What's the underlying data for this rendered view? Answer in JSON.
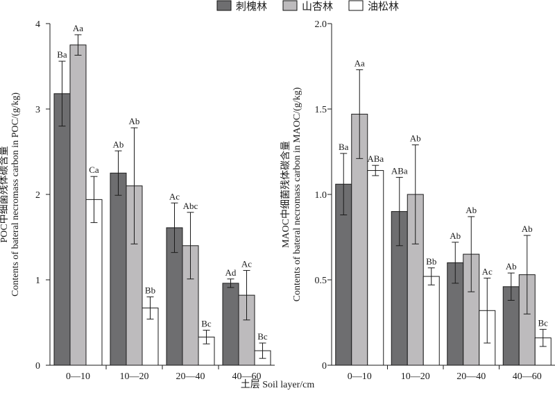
{
  "legend": [
    {
      "name": "刺槐林",
      "color": "#6e6e70"
    },
    {
      "name": "山杏林",
      "color": "#bdbbbd"
    },
    {
      "name": "油松林",
      "color": "#ffffff"
    }
  ],
  "xlabel": "土层  Soil layer/cm",
  "chart_data": [
    {
      "type": "bar",
      "categories": [
        "0—10",
        "10—20",
        "20—40",
        "40—60"
      ],
      "ylabel_cn": "POC中细菌残体碳含量",
      "ylabel_en": "Contents of bateral necromass carbon in POC/(g/kg)",
      "ylim": [
        0,
        4
      ],
      "yticks": [
        "0",
        "1",
        "2",
        "3",
        "4"
      ],
      "ytick_values": [
        0,
        1,
        2,
        3,
        4
      ],
      "series": [
        {
          "name": "刺槐林",
          "values": [
            3.18,
            2.25,
            1.61,
            0.96
          ],
          "errors": [
            0.38,
            0.26,
            0.29,
            0.05
          ],
          "labels": [
            "Ba",
            "Ab",
            "Ac",
            "Ad"
          ]
        },
        {
          "name": "山杏林",
          "values": [
            3.75,
            2.1,
            1.4,
            0.82
          ],
          "errors": [
            0.12,
            0.68,
            0.39,
            0.29
          ],
          "labels": [
            "Aa",
            "Ab",
            "Abc",
            "Ac"
          ]
        },
        {
          "name": "油松林",
          "values": [
            1.94,
            0.67,
            0.33,
            0.17
          ],
          "errors": [
            0.27,
            0.13,
            0.08,
            0.09
          ],
          "labels": [
            "Ca",
            "Bb",
            "Bc",
            "Bc"
          ]
        }
      ]
    },
    {
      "type": "bar",
      "categories": [
        "0—10",
        "10—20",
        "20—40",
        "40—60"
      ],
      "ylabel_cn": "MAOC中细菌残体碳含量",
      "ylabel_en": "Contents of bateral necromass carbon in MAOC/(g/kg)",
      "ylim": [
        0,
        2.0
      ],
      "yticks": [
        "0",
        "0.5",
        "1.0",
        "1.5",
        "2.0"
      ],
      "ytick_values": [
        0,
        0.5,
        1.0,
        1.5,
        2.0
      ],
      "series": [
        {
          "name": "刺槐林",
          "values": [
            1.06,
            0.9,
            0.6,
            0.46
          ],
          "errors": [
            0.18,
            0.2,
            0.12,
            0.08
          ],
          "labels": [
            "Ba",
            "ABa",
            "Ab",
            "Ab"
          ]
        },
        {
          "name": "山杏林",
          "values": [
            1.47,
            1.0,
            0.65,
            0.53
          ],
          "errors": [
            0.26,
            0.29,
            0.22,
            0.23
          ],
          "labels": [
            "Aa",
            "Ab",
            "Ab",
            "Ab"
          ]
        },
        {
          "name": "油松林",
          "values": [
            1.14,
            0.52,
            0.32,
            0.16
          ],
          "errors": [
            0.03,
            0.05,
            0.19,
            0.05
          ],
          "labels": [
            "ABa",
            "Bb",
            "Ac",
            "Bc"
          ]
        }
      ]
    }
  ]
}
